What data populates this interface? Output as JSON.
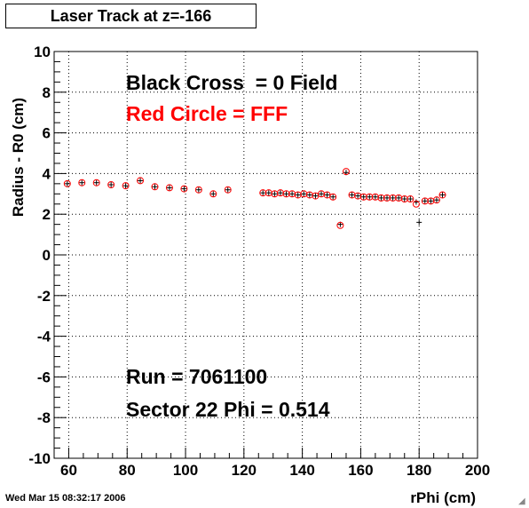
{
  "title": "Laser Track at z=-166",
  "timestamp": "Wed Mar 15 08:32:17 2006",
  "colors": {
    "field_zero": "#000000",
    "field_fff": "#ff0000",
    "grid": "#000000"
  },
  "chart_data": {
    "type": "scatter",
    "xlabel": "rPhi (cm)",
    "ylabel": "Radius - R0 (cm)",
    "xlim": [
      55,
      200
    ],
    "ylim": [
      -10,
      10
    ],
    "x_ticks": [
      60,
      80,
      100,
      120,
      140,
      160,
      180,
      200
    ],
    "y_ticks": [
      -10,
      -8,
      -6,
      -4,
      -2,
      0,
      2,
      4,
      6,
      8,
      10
    ],
    "grid": true,
    "annotations": [
      {
        "text": "Black Cross  = 0 Field",
        "color": "#000000"
      },
      {
        "text": "Red Circle = FFF",
        "color": "#ff0000"
      },
      {
        "text": "Run = 7061100",
        "color": "#000000"
      },
      {
        "text": "Sector 22 Phi = 0.514",
        "color": "#000000"
      }
    ],
    "series": [
      {
        "marker": "cross",
        "color": "#000000",
        "points": [
          [
            59.5,
            3.5
          ],
          [
            64.5,
            3.55
          ],
          [
            69.5,
            3.55
          ],
          [
            74.5,
            3.45
          ],
          [
            79.5,
            3.4
          ],
          [
            84.5,
            3.65
          ],
          [
            89.5,
            3.35
          ],
          [
            94.5,
            3.3
          ],
          [
            99.5,
            3.25
          ],
          [
            104.5,
            3.2
          ],
          [
            109.5,
            3.0
          ],
          [
            114.5,
            3.2
          ],
          [
            126.5,
            3.05
          ],
          [
            128.5,
            3.05
          ],
          [
            130.5,
            3.0
          ],
          [
            132.5,
            3.05
          ],
          [
            134.5,
            3.0
          ],
          [
            136.5,
            3.0
          ],
          [
            138.5,
            2.95
          ],
          [
            140.5,
            3.0
          ],
          [
            142.5,
            2.95
          ],
          [
            144.5,
            2.9
          ],
          [
            146.5,
            3.0
          ],
          [
            148.5,
            2.95
          ],
          [
            150.5,
            2.85
          ],
          [
            153,
            1.5
          ],
          [
            155,
            4.05
          ],
          [
            157,
            2.95
          ],
          [
            159,
            2.9
          ],
          [
            161,
            2.85
          ],
          [
            163,
            2.85
          ],
          [
            165,
            2.85
          ],
          [
            167,
            2.8
          ],
          [
            169,
            2.8
          ],
          [
            171,
            2.8
          ],
          [
            173,
            2.8
          ],
          [
            175,
            2.75
          ],
          [
            177,
            2.75
          ],
          [
            179,
            2.6
          ],
          [
            180,
            1.6
          ],
          [
            182,
            2.65
          ],
          [
            184,
            2.65
          ],
          [
            186,
            2.7
          ],
          [
            188,
            2.95
          ]
        ]
      },
      {
        "marker": "circle",
        "color": "#ff0000",
        "points": [
          [
            59.5,
            3.5
          ],
          [
            64.5,
            3.55
          ],
          [
            69.5,
            3.55
          ],
          [
            74.5,
            3.45
          ],
          [
            79.5,
            3.4
          ],
          [
            84.5,
            3.65
          ],
          [
            89.5,
            3.35
          ],
          [
            94.5,
            3.3
          ],
          [
            99.5,
            3.25
          ],
          [
            104.5,
            3.2
          ],
          [
            109.5,
            3.0
          ],
          [
            114.5,
            3.2
          ],
          [
            126.5,
            3.05
          ],
          [
            128.5,
            3.05
          ],
          [
            130.5,
            3.0
          ],
          [
            132.5,
            3.05
          ],
          [
            134.5,
            3.0
          ],
          [
            136.5,
            3.0
          ],
          [
            138.5,
            2.95
          ],
          [
            140.5,
            3.0
          ],
          [
            142.5,
            2.95
          ],
          [
            144.5,
            2.9
          ],
          [
            146.5,
            3.0
          ],
          [
            148.5,
            2.95
          ],
          [
            150.5,
            2.85
          ],
          [
            153,
            1.45
          ],
          [
            155,
            4.1
          ],
          [
            157,
            2.95
          ],
          [
            159,
            2.9
          ],
          [
            161,
            2.85
          ],
          [
            163,
            2.85
          ],
          [
            165,
            2.85
          ],
          [
            167,
            2.8
          ],
          [
            169,
            2.8
          ],
          [
            171,
            2.8
          ],
          [
            173,
            2.8
          ],
          [
            175,
            2.75
          ],
          [
            177,
            2.75
          ],
          [
            179,
            2.5
          ],
          [
            182,
            2.65
          ],
          [
            184,
            2.65
          ],
          [
            186,
            2.7
          ],
          [
            188,
            2.95
          ]
        ]
      }
    ]
  }
}
